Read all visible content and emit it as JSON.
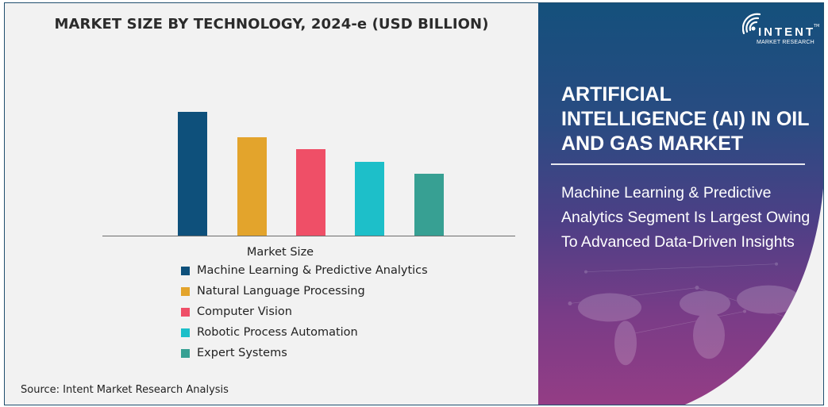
{
  "chart_data": {
    "type": "bar",
    "title": "MARKET SIZE BY TECHNOLOGY, 2024-e (USD BILLION)",
    "xlabel": "Market Size",
    "ylabel": "",
    "grid": false,
    "legend_position": "bottom",
    "categories": [
      "Machine Learning & Predictive Analytics",
      "Natural Language Processing",
      "Computer Vision",
      "Robotic Process Automation",
      "Expert Systems"
    ],
    "values": [
      156,
      124,
      109,
      93,
      78
    ],
    "values_note": "relative bar heights (no axis shown)",
    "colors": [
      "#0e507b",
      "#e3a42c",
      "#ef4f67",
      "#1dbfc9",
      "#37a093"
    ]
  },
  "chart": {
    "title": "MARKET SIZE BY TECHNOLOGY, 2024-e (USD BILLION)",
    "legend_title": "Market Size",
    "legend": [
      {
        "label": "Machine Learning & Predictive Analytics",
        "color": "#0e507b"
      },
      {
        "label": "Natural Language Processing",
        "color": "#e3a42c"
      },
      {
        "label": "Computer Vision",
        "color": "#ef4f67"
      },
      {
        "label": "Robotic Process Automation",
        "color": "#1dbfc9"
      },
      {
        "label": "Expert Systems",
        "color": "#37a093"
      }
    ],
    "source": "Source: Intent Market Research Analysis"
  },
  "brand": {
    "name": "INTENT",
    "tagline": "MARKET RESEARCH",
    "tm": "TM"
  },
  "side": {
    "headline": "ARTIFICIAL INTELLIGENCE (AI) IN OIL AND GAS MARKET",
    "subhead": "Machine Learning & Predictive Analytics Segment Is Largest Owing To Advanced Data-Driven Insights"
  }
}
